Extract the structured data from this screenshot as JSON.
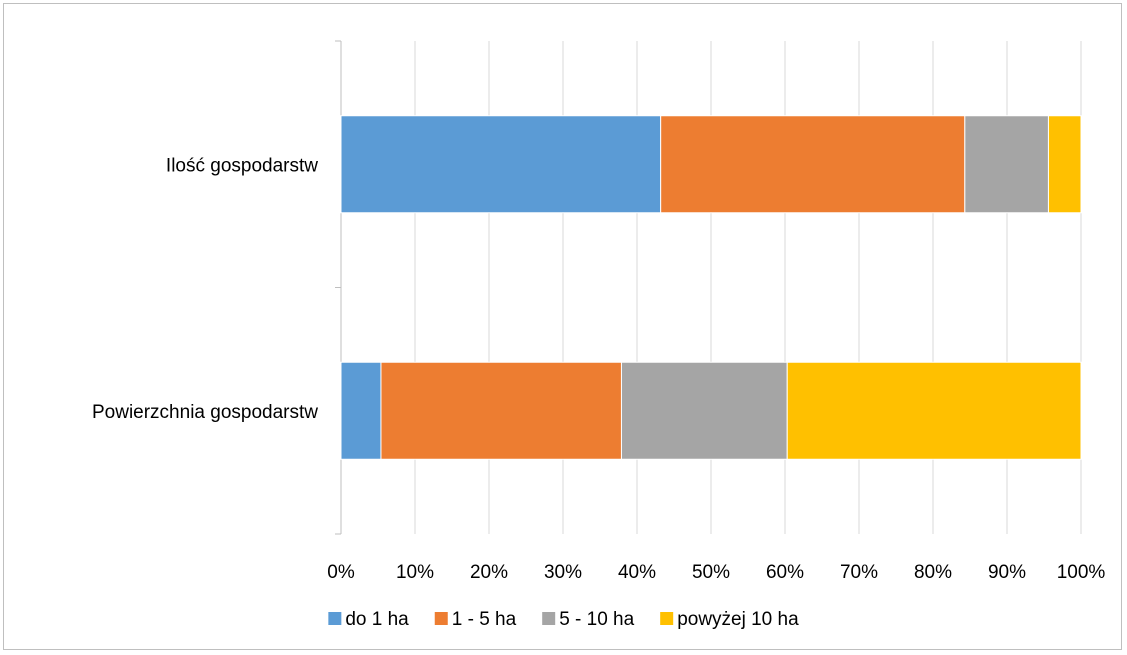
{
  "chart_data": {
    "type": "bar",
    "orientation": "horizontal",
    "stacked": true,
    "percent_stacked": true,
    "categories": [
      "Ilość gospodarstw",
      "Powierzchnia gospodarstw"
    ],
    "series": [
      {
        "name": "do 1 ha",
        "values": [
          43.2,
          5.4
        ],
        "color": "#5b9bd5"
      },
      {
        "name": "1 - 5 ha",
        "values": [
          41.1,
          32.5
        ],
        "color": "#ed7d31"
      },
      {
        "name": "5 - 10 ha",
        "values": [
          11.3,
          22.4
        ],
        "color": "#a5a5a5"
      },
      {
        "name": "powyżej 10 ha",
        "values": [
          4.4,
          39.7
        ],
        "color": "#ffc000"
      }
    ],
    "xticks": [
      "0%",
      "10%",
      "20%",
      "30%",
      "40%",
      "50%",
      "60%",
      "70%",
      "80%",
      "90%",
      "100%"
    ],
    "xlim": [
      0,
      100
    ],
    "grid": true,
    "legend_position": "bottom",
    "title": "",
    "xlabel": "",
    "ylabel": ""
  }
}
